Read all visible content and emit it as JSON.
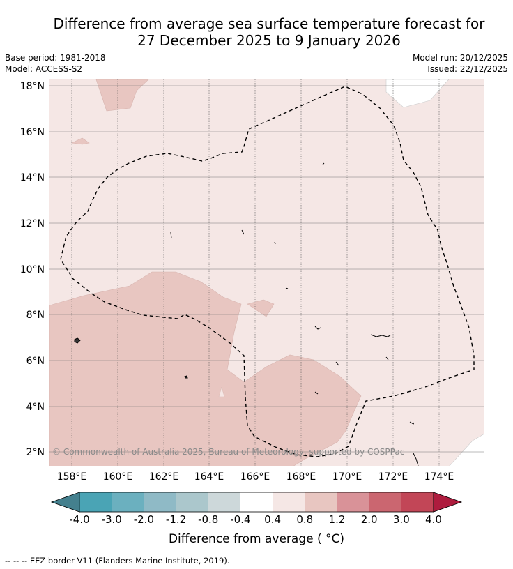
{
  "title_line1": "Difference from average sea surface temperature forecast for",
  "title_line2": "27 December 2025 to 9 January 2026",
  "meta": {
    "base_period": "Base period: 1981-2018",
    "model": "Model: ACCESS-S2",
    "model_run": "Model run: 20/12/2025",
    "issued": "Issued: 22/12/2025"
  },
  "lat_labels": [
    "18°N",
    "16°N",
    "14°N",
    "12°N",
    "10°N",
    "8°N",
    "6°N",
    "4°N",
    "2°N"
  ],
  "lon_labels": [
    "158°E",
    "160°E",
    "162°E",
    "164°E",
    "166°E",
    "168°E",
    "170°E",
    "172°E",
    "174°E"
  ],
  "copyright": "© Commonwealth of Australia 2025, Bureau of Meteorology, supported by COSPPac",
  "colorbar": {
    "labels": [
      "-4.0",
      "-3.0",
      "-2.0",
      "-1.2",
      "-0.8",
      "-0.4",
      "0.4",
      "0.8",
      "1.2",
      "2.0",
      "3.0",
      "4.0"
    ],
    "colors": [
      "#4aa4b5",
      "#6bb0bf",
      "#8fbac6",
      "#abc7cc",
      "#cdd8da",
      "#ffffff",
      "#f5e7e5",
      "#e8c6c1",
      "#d99298",
      "#cb6670",
      "#c24657"
    ],
    "extend_low_color": "#44808e",
    "extend_high_color": "#ae1c3e",
    "title": "Difference from average ( °C)"
  },
  "footer": "--  --  -- EEZ border V11 (Flanders Marine Institute, 2019)."
}
